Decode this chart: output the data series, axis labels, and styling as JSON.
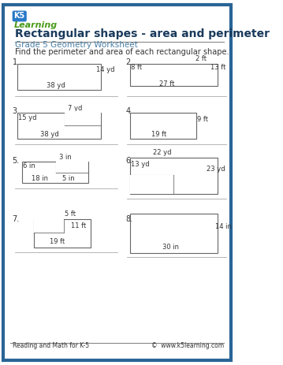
{
  "title": "Rectangular shapes - area and perimeter",
  "subtitle": "Grade 5 Geometry Worksheet",
  "instruction": "Find the perimeter and area of each rectangular shape.",
  "border_color": "#2a6496",
  "title_color": "#1a3a5c",
  "subtitle_color": "#4a7fa5",
  "text_color": "#333333",
  "rect_color": "#888888",
  "bg_color": "#ffffff",
  "footer_left": "Reading and Math for K-5",
  "footer_right": "©  www.k5learning.com"
}
